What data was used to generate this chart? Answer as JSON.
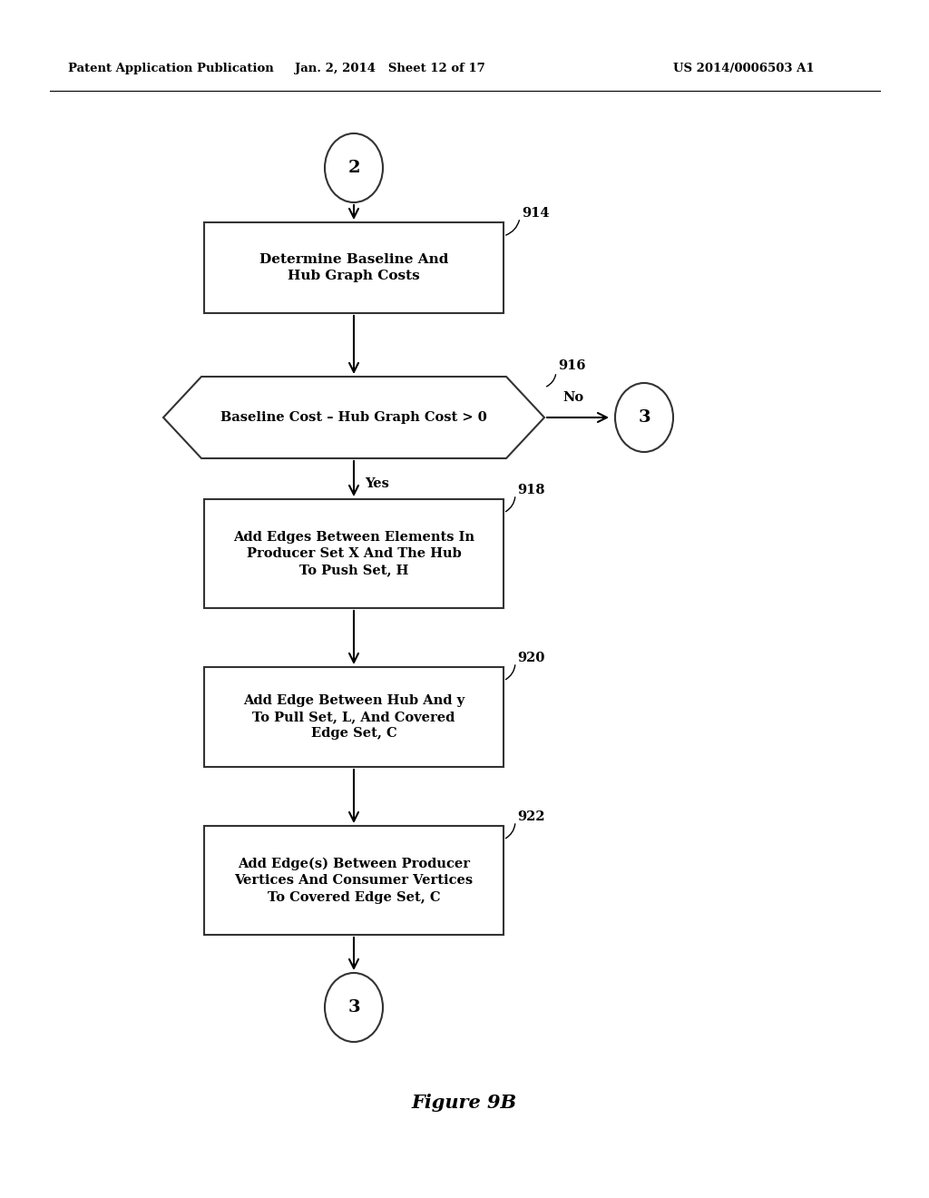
{
  "bg_color": "#ffffff",
  "header_left": "Patent Application Publication",
  "header_mid": "Jan. 2, 2014   Sheet 12 of 17",
  "header_right": "US 2014/0006503 A1",
  "figure_caption": "Figure 9B",
  "ref_914": "914",
  "ref_916": "916",
  "ref_918": "918",
  "ref_920": "920",
  "ref_922": "922",
  "label_no": "No",
  "label_yes": "Yes",
  "text_914": "Determine Baseline And\nHub Graph Costs",
  "text_916": "Baseline Cost – Hub Graph Cost > 0",
  "text_918": "Add Edges Between Elements In\nProducer Set X And The Hub\nTo Push Set, H",
  "text_920": "Add Edge Between Hub And y\nTo Pull Set, L, And Covered\nEdge Set, C",
  "text_922": "Add Edge(s) Between Producer\nVertices And Consumer Vertices\nTo Covered Edge Set, C"
}
